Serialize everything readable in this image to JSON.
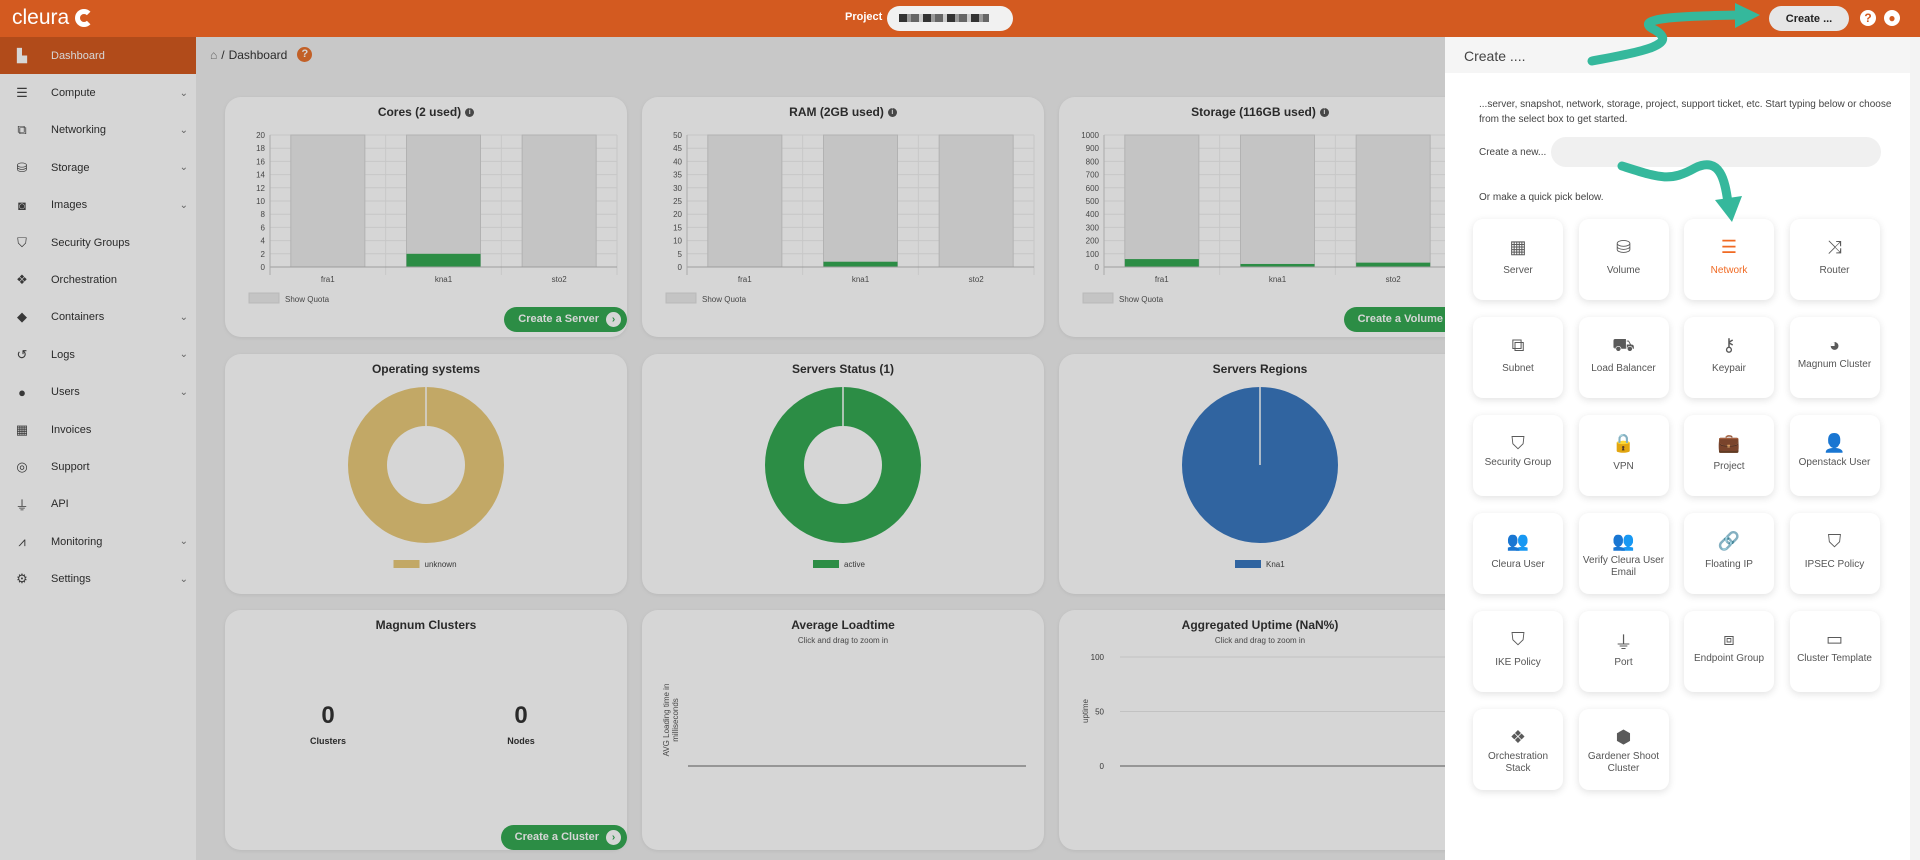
{
  "topbar": {
    "logo": "cleura",
    "project_label": "Project",
    "create_button": "Create ...",
    "help_icon": "question-circle-icon",
    "user_icon": "user-circle-icon"
  },
  "sidebar": {
    "items": [
      {
        "label": "Dashboard",
        "icon": "chart-area-icon",
        "active": true,
        "expandable": false
      },
      {
        "label": "Compute",
        "icon": "server-icon",
        "expandable": true
      },
      {
        "label": "Networking",
        "icon": "sitemap-icon",
        "expandable": true
      },
      {
        "label": "Storage",
        "icon": "database-icon",
        "expandable": true
      },
      {
        "label": "Images",
        "icon": "camera-icon",
        "expandable": true
      },
      {
        "label": "Security Groups",
        "icon": "shield-icon",
        "expandable": false
      },
      {
        "label": "Orchestration",
        "icon": "orchestration-icon",
        "expandable": false
      },
      {
        "label": "Containers",
        "icon": "cube-icon",
        "expandable": true
      },
      {
        "label": "Logs",
        "icon": "history-icon",
        "expandable": true
      },
      {
        "label": "Users",
        "icon": "user-icon",
        "expandable": true
      },
      {
        "label": "Invoices",
        "icon": "calculator-icon",
        "expandable": false
      },
      {
        "label": "Support",
        "icon": "life-ring-icon",
        "expandable": false
      },
      {
        "label": "API",
        "icon": "plug-icon",
        "expandable": false
      },
      {
        "label": "Monitoring",
        "icon": "chart-line-icon",
        "expandable": true
      },
      {
        "label": "Settings",
        "icon": "gear-icon",
        "expandable": true
      }
    ]
  },
  "breadcrumb": {
    "current": "Dashboard"
  },
  "cards": {
    "cores": {
      "title": "Cores (2 used)",
      "legend": "Show Quota",
      "button": "Create a Server"
    },
    "ram": {
      "title": "RAM (2GB used)",
      "legend": "Show Quota"
    },
    "storage": {
      "title": "Storage (116GB used)",
      "legend": "Show Quota",
      "button": "Create a Volume"
    },
    "os": {
      "title": "Operating systems"
    },
    "status": {
      "title": "Servers Status (1)"
    },
    "regions": {
      "title": "Servers Regions"
    },
    "magnum": {
      "title": "Magnum Clusters",
      "clusters": "0",
      "clusters_label": "Clusters",
      "nodes": "0",
      "nodes_label": "Nodes",
      "button": "Create a Cluster"
    },
    "loadtime": {
      "title": "Average Loadtime",
      "subtitle": "Click and drag to zoom in",
      "ylabel_1": "AVG Loading time in",
      "ylabel_2": "milliseconds"
    },
    "uptime": {
      "title": "Aggregated Uptime (NaN%)",
      "subtitle": "Click and drag to zoom in",
      "ylabel": "uptime"
    }
  },
  "chart_data": [
    {
      "id": "cores",
      "type": "bar",
      "categories": [
        "fra1",
        "kna1",
        "sto2"
      ],
      "series": [
        {
          "name": "Show Quota",
          "values": [
            20,
            20,
            20
          ]
        },
        {
          "values": [
            0,
            2,
            0
          ]
        }
      ],
      "yticks": [
        0,
        2,
        4,
        6,
        8,
        10,
        12,
        14,
        16,
        18,
        20
      ],
      "ylim": [
        0,
        20
      ],
      "grid": true
    },
    {
      "id": "ram",
      "type": "bar",
      "categories": [
        "fra1",
        "kna1",
        "sto2"
      ],
      "series": [
        {
          "name": "Show Quota",
          "values": [
            50,
            50,
            50
          ]
        },
        {
          "values": [
            0,
            2,
            0
          ]
        }
      ],
      "yticks": [
        0,
        5,
        10,
        15,
        20,
        25,
        30,
        35,
        40,
        45,
        50
      ],
      "ylim": [
        0,
        50
      ],
      "grid": true
    },
    {
      "id": "storage",
      "type": "bar",
      "categories": [
        "fra1",
        "kna1",
        "sto2"
      ],
      "series": [
        {
          "name": "Show Quota",
          "values": [
            1000,
            1000,
            1000
          ]
        },
        {
          "values": [
            60,
            23,
            33
          ]
        }
      ],
      "yticks": [
        0,
        100,
        200,
        300,
        400,
        500,
        600,
        700,
        800,
        900,
        1000
      ],
      "ylim": [
        0,
        1000
      ],
      "grid": true
    },
    {
      "id": "os",
      "type": "pie",
      "donut": true,
      "labels": [
        "unknown"
      ],
      "values": [
        1
      ],
      "colors": [
        "#e8c97a"
      ]
    },
    {
      "id": "status",
      "type": "pie",
      "donut": true,
      "labels": [
        "active"
      ],
      "values": [
        1
      ],
      "colors": [
        "#35a853"
      ]
    },
    {
      "id": "regions",
      "type": "pie",
      "donut": false,
      "labels": [
        "Kna1"
      ],
      "values": [
        1
      ],
      "colors": [
        "#3a78bf"
      ]
    },
    {
      "id": "uptime",
      "type": "line",
      "yticks": [
        0,
        50,
        100
      ],
      "ylim": [
        0,
        100
      ],
      "ylabel": "uptime",
      "values": []
    }
  ],
  "panel": {
    "title": "Create ....",
    "description": "...server, snapshot, network, storage, project, support ticket, etc. Start typing below or choose from the select box to get started.",
    "new_label": "Create a new...",
    "new_value": "",
    "pick_label": "Or make a quick pick below.",
    "tiles": [
      {
        "label": "Server",
        "icon": "microchip-icon",
        "glyph": "▦"
      },
      {
        "label": "Volume",
        "icon": "database-icon",
        "glyph": "⛁"
      },
      {
        "label": "Network",
        "icon": "server-rack-icon",
        "glyph": "☰",
        "selected": true
      },
      {
        "label": "Router",
        "icon": "shuffle-icon",
        "glyph": "⤨"
      },
      {
        "label": "Subnet",
        "icon": "sitemap-icon",
        "glyph": "⧉"
      },
      {
        "label": "Load Balancer",
        "icon": "dolly-icon",
        "glyph": "⛟"
      },
      {
        "label": "Keypair",
        "icon": "key-icon",
        "glyph": "⚷"
      },
      {
        "label": "Magnum Cluster",
        "icon": "pie-chart-icon",
        "glyph": "◕"
      },
      {
        "label": "Security Group",
        "icon": "shield-icon",
        "glyph": "⛉"
      },
      {
        "label": "VPN",
        "icon": "lock-icon",
        "glyph": "🔒"
      },
      {
        "label": "Project",
        "icon": "briefcase-icon",
        "glyph": "💼"
      },
      {
        "label": "Openstack User",
        "icon": "user-code-icon",
        "glyph": "👤"
      },
      {
        "label": "Cleura User",
        "icon": "user-cleura-icon",
        "glyph": "👥"
      },
      {
        "label": "Verify Cleura User Email",
        "icon": "user-cleura-icon",
        "glyph": "👥"
      },
      {
        "label": "Floating IP",
        "icon": "link-icon",
        "glyph": "🔗"
      },
      {
        "label": "IPSEC Policy",
        "icon": "shield-icon",
        "glyph": "⛉"
      },
      {
        "label": "IKE Policy",
        "icon": "shield-icon",
        "glyph": "⛉"
      },
      {
        "label": "Port",
        "icon": "plug-icon",
        "glyph": "⏚"
      },
      {
        "label": "Endpoint Group",
        "icon": "cubes-icon",
        "glyph": "⧈"
      },
      {
        "label": "Cluster Template",
        "icon": "hdd-icon",
        "glyph": "▭"
      },
      {
        "label": "Orchestration Stack",
        "icon": "orchestration-icon",
        "glyph": "❖"
      },
      {
        "label": "Gardener Shoot Cluster",
        "icon": "gardener-icon",
        "glyph": "⬢"
      }
    ]
  },
  "colors": {
    "brand": "#d35a20",
    "success": "#35a853",
    "annotation_arrow": "#35b89c",
    "selected_tile": "#f06a23"
  }
}
